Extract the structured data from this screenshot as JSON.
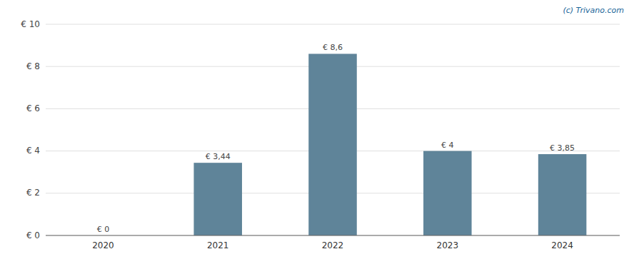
{
  "chart_data": {
    "type": "bar",
    "categories": [
      "2020",
      "2021",
      "2022",
      "2023",
      "2024"
    ],
    "values": [
      0,
      3.44,
      8.6,
      4.0,
      3.85
    ],
    "value_labels": [
      "€ 0",
      "€ 3,44",
      "€ 8,6",
      "€ 4",
      "€ 3,85"
    ],
    "data_labels": true,
    "color": "#5f8499",
    "ylim": [
      0,
      10
    ],
    "yticks": [
      {
        "value": 0,
        "label": "€ 0"
      },
      {
        "value": 2,
        "label": "€ 2"
      },
      {
        "value": 4,
        "label": "€ 4"
      },
      {
        "value": 6,
        "label": "€ 6"
      },
      {
        "value": 8,
        "label": "€ 8"
      },
      {
        "value": 10,
        "label": "€ 10"
      }
    ],
    "grid": true,
    "annotation": "(c) Trivano.com"
  }
}
